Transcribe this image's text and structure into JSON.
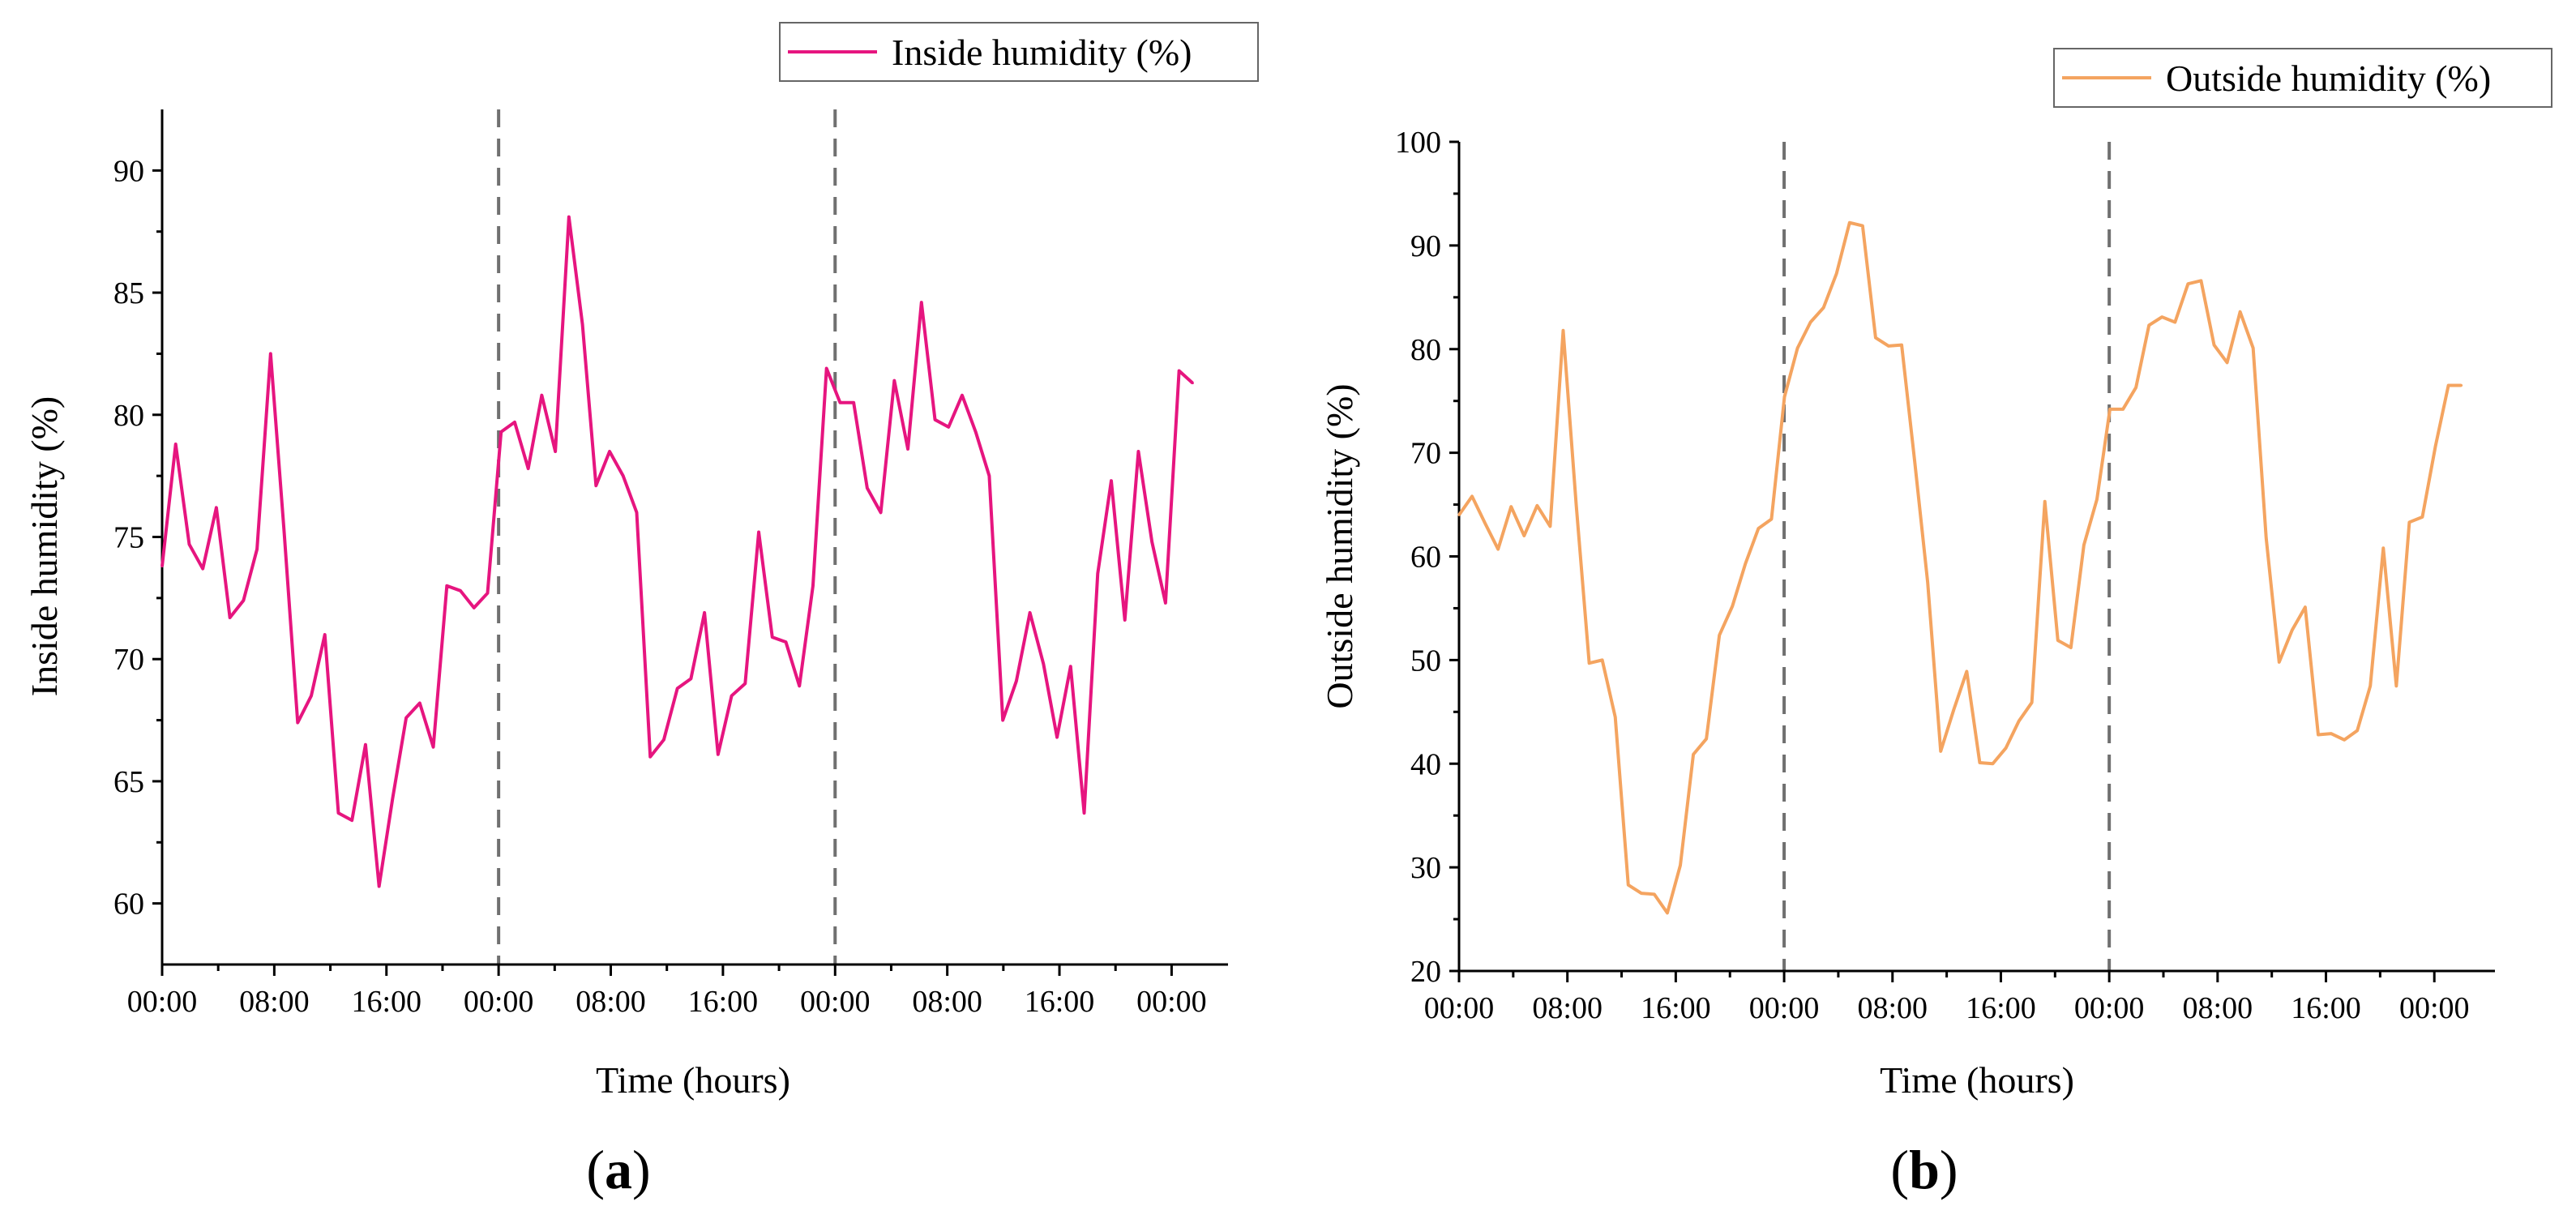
{
  "chart_data": [
    {
      "type": "line",
      "panel_label": "a",
      "legend_position": "top-right",
      "series": [
        {
          "name": "Inside humidity (%)",
          "color": "#e6157f",
          "values": [
            73.8,
            78.8,
            74.7,
            73.7,
            76.2,
            71.7,
            72.4,
            74.5,
            82.5,
            75.2,
            67.4,
            68.5,
            71.0,
            63.7,
            63.4,
            66.5,
            60.7,
            64.3,
            67.6,
            68.2,
            66.4,
            73.0,
            72.8,
            72.1,
            72.7,
            79.3,
            79.7,
            77.8,
            80.8,
            78.5,
            88.1,
            83.7,
            77.1,
            78.5,
            77.5,
            76.0,
            66.0,
            66.7,
            68.8,
            69.2,
            71.9,
            66.1,
            68.5,
            69.0,
            75.2,
            70.9,
            70.7,
            68.9,
            73.0,
            81.9,
            80.5,
            80.5,
            77.0,
            76.0,
            81.4,
            78.6,
            84.6,
            79.8,
            79.5,
            80.8,
            79.3,
            77.5,
            67.5,
            69.1,
            71.9,
            69.8,
            66.8,
            69.7,
            63.7,
            73.5,
            77.3,
            71.6,
            78.5,
            74.8,
            72.3,
            81.8,
            81.3
          ]
        }
      ],
      "xlabel": "Time (hours)",
      "ylabel": "Inside humidity (%)",
      "x_tick_labels": [
        "00:00",
        "08:00",
        "16:00",
        "00:00",
        "08:00",
        "16:00",
        "00:00",
        "08:00",
        "16:00",
        "00:00"
      ],
      "x_tick_hours": [
        0,
        8,
        16,
        24,
        32,
        40,
        48,
        56,
        64,
        72
      ],
      "xlim_hours": [
        0,
        74
      ],
      "y_ticks": [
        60,
        65,
        70,
        75,
        80,
        85,
        90
      ],
      "ylim": [
        57.5,
        92.5
      ],
      "day_boundaries_hours": [
        24,
        48
      ],
      "grid": false
    },
    {
      "type": "line",
      "panel_label": "b",
      "legend_position": "top-right",
      "series": [
        {
          "name": "Outside humidity (%)",
          "color": "#f4a460",
          "values": [
            64.0,
            65.8,
            63.2,
            60.7,
            64.8,
            62.0,
            64.9,
            62.9,
            81.8,
            65.0,
            49.7,
            50.0,
            44.5,
            28.3,
            27.5,
            27.4,
            25.6,
            30.2,
            40.9,
            42.4,
            52.4,
            55.2,
            59.3,
            62.7,
            63.6,
            75.4,
            80.1,
            82.6,
            84.0,
            87.3,
            92.2,
            91.9,
            81.1,
            80.3,
            80.4,
            69.2,
            57.5,
            41.2,
            45.2,
            48.9,
            40.1,
            40.0,
            41.5,
            44.1,
            45.9,
            65.3,
            51.9,
            51.2,
            61.1,
            65.5,
            74.2,
            74.2,
            76.3,
            82.3,
            83.1,
            82.6,
            86.3,
            86.6,
            80.4,
            78.7,
            83.6,
            80.1,
            61.8,
            49.8,
            52.9,
            55.1,
            42.8,
            42.9,
            42.3,
            43.2,
            47.5,
            60.8,
            47.5,
            63.3,
            63.8,
            70.6,
            76.5,
            76.5
          ]
        }
      ],
      "xlabel": "Time (hours)",
      "ylabel": "Outside humidity (%)",
      "x_tick_labels": [
        "00:00",
        "08:00",
        "16:00",
        "00:00",
        "08:00",
        "16:00",
        "00:00",
        "08:00",
        "16:00",
        "00:00"
      ],
      "x_tick_hours": [
        0,
        8,
        16,
        24,
        32,
        40,
        48,
        56,
        64,
        72
      ],
      "xlim_hours": [
        0,
        74.5
      ],
      "y_ticks": [
        20,
        30,
        40,
        50,
        60,
        70,
        80,
        90,
        100
      ],
      "ylim": [
        20,
        100
      ],
      "day_boundaries_hours": [
        24,
        48
      ],
      "grid": false
    }
  ]
}
